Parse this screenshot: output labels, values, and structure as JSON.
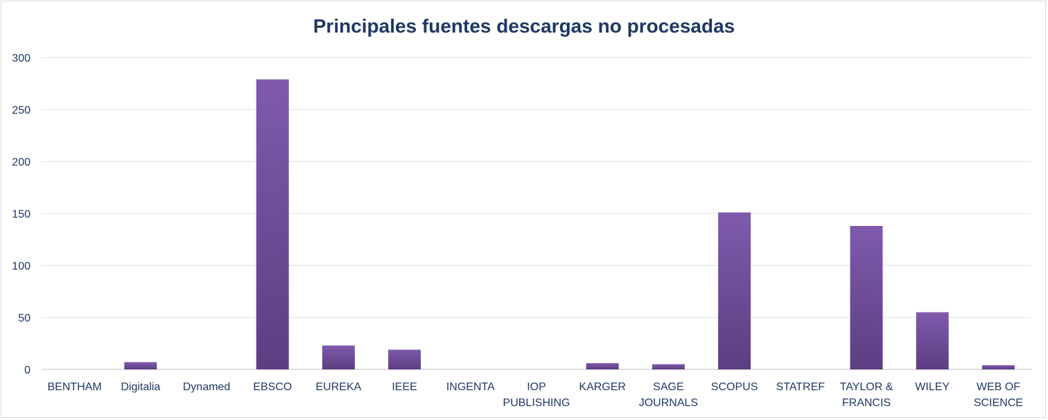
{
  "chart_data": {
    "type": "bar",
    "title": "Principales fuentes descargas no procesadas",
    "xlabel": "",
    "ylabel": "",
    "ylim": [
      0,
      300
    ],
    "yticks": [
      0,
      50,
      100,
      150,
      200,
      250,
      300
    ],
    "grid": true,
    "legend": "none",
    "colors": {
      "bar_top": "#7f5aad",
      "bar_bottom": "#5c3e82",
      "grid": "#d9e1f2",
      "text": "#1f3864"
    },
    "categories": [
      [
        "BENTHAM"
      ],
      [
        "Digitalia"
      ],
      [
        "Dynamed"
      ],
      [
        "EBSCO"
      ],
      [
        "EUREKA"
      ],
      [
        "IEEE"
      ],
      [
        "INGENTA"
      ],
      [
        "IOP",
        "PUBLISHING"
      ],
      [
        "KARGER"
      ],
      [
        "SAGE",
        "JOURNALS"
      ],
      [
        "SCOPUS"
      ],
      [
        "STATREF"
      ],
      [
        "TAYLOR &",
        "FRANCIS"
      ],
      [
        "WILEY"
      ],
      [
        "WEB OF",
        "SCIENCE"
      ]
    ],
    "values": [
      0,
      7,
      0,
      279,
      23,
      19,
      0,
      0,
      6,
      5,
      151,
      0,
      138,
      55,
      4
    ]
  }
}
